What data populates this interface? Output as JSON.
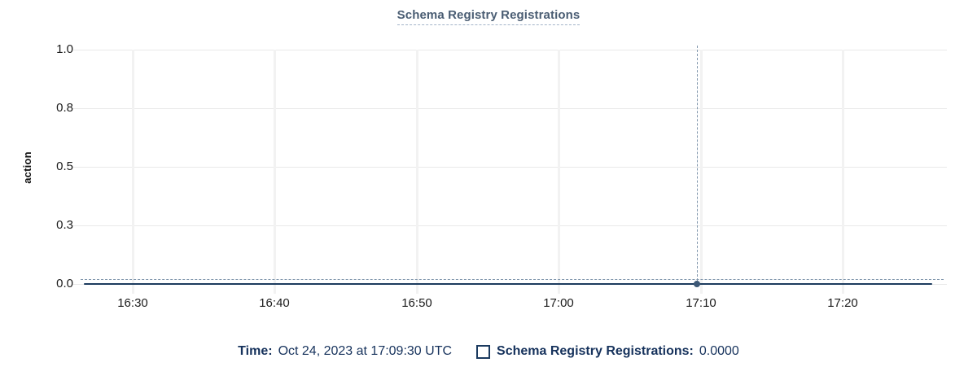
{
  "chart_data": {
    "type": "line",
    "title": "Schema Registry Registrations",
    "xlabel": "",
    "ylabel": "action",
    "x_ticks": [
      "16:30",
      "16:40",
      "16:50",
      "17:00",
      "17:10",
      "17:20"
    ],
    "y_ticks_top_to_bottom": [
      "1.0",
      "0.8",
      "0.5",
      "0.3",
      "0.0"
    ],
    "ylim": [
      0.0,
      1.0
    ],
    "grid": true,
    "legend_position": "bottom",
    "series": [
      {
        "name": "Schema Registry Registrations",
        "color": "#1c3b5e",
        "x": [
          "16:30",
          "16:40",
          "16:50",
          "17:00",
          "17:10",
          "17:20"
        ],
        "values": [
          0,
          0,
          0,
          0,
          0,
          0
        ],
        "note": "flat line at 0 across the whole visible window"
      }
    ],
    "hovered_point": {
      "time": "Oct 24, 2023 at 17:09:30 UTC",
      "x_tick": "17:09:30",
      "value": 0.0,
      "value_display": "0.0000"
    }
  },
  "tooltip": {
    "time_label": "Time:",
    "time_value": "Oct 24, 2023 at 17:09:30 UTC",
    "series_label": "Schema Registry Registrations:",
    "series_value": "0.0000"
  },
  "colors": {
    "title": "#4a5d73",
    "series_line": "#1c3b5e",
    "crosshair": "#8096ac",
    "gridline": "#e9e9e9",
    "legend_text": "#16325c",
    "background": "#ffffff"
  }
}
